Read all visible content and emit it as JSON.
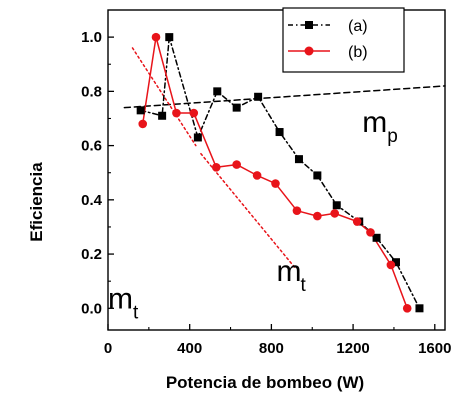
{
  "chart_data": {
    "type": "line",
    "xlabel": "Potencia de bombeo (W)",
    "ylabel": "Eficiencia",
    "xlim": [
      0,
      1650
    ],
    "ylim": [
      -0.08,
      1.1
    ],
    "xticks": [
      0,
      400,
      800,
      1200,
      1600
    ],
    "yticks": [
      0.0,
      0.2,
      0.4,
      0.6,
      0.8,
      1.0
    ],
    "xtick_labels": [
      "0",
      "400",
      "800",
      "1200",
      "1600"
    ],
    "ytick_labels": [
      "0.0",
      "0.2",
      "0.4",
      "0.6",
      "0.8",
      "1.0"
    ],
    "legend_position": "top-right",
    "series": [
      {
        "name": "(a)",
        "color": "#000000",
        "marker": "square",
        "line_style": "dash-dot",
        "x": [
          160,
          265,
          300,
          440,
          535,
          630,
          735,
          840,
          935,
          1025,
          1120,
          1230,
          1315,
          1410,
          1525
        ],
        "y": [
          0.73,
          0.71,
          1.0,
          0.63,
          0.8,
          0.74,
          0.78,
          0.65,
          0.55,
          0.49,
          0.38,
          0.32,
          0.26,
          0.17,
          0.0
        ]
      },
      {
        "name": "(b)",
        "color": "#e8141a",
        "marker": "circle",
        "line_style": "solid",
        "x": [
          170,
          235,
          335,
          420,
          530,
          630,
          730,
          820,
          925,
          1025,
          1110,
          1220,
          1285,
          1385,
          1465
        ],
        "y": [
          0.68,
          1.0,
          0.72,
          0.72,
          0.52,
          0.53,
          0.49,
          0.46,
          0.36,
          0.34,
          0.35,
          0.32,
          0.28,
          0.16,
          0.0
        ]
      }
    ],
    "annotations": [
      {
        "label": "m",
        "subscript": "p",
        "color": "#000000",
        "line_style": "dashed",
        "line_x": [
          80,
          1650
        ],
        "line_y": [
          0.74,
          0.82
        ],
        "label_anchor": [
          1245,
          0.65
        ]
      },
      {
        "label": "m",
        "subscript": "t",
        "color": "#e8141a",
        "line_style": "dotted",
        "line_x": [
          120,
          430
        ],
        "line_y": [
          0.96,
          0.6
        ],
        "label_anchor": [
          0,
          0
        ]
      },
      {
        "label": "",
        "subscript": "",
        "color": "#e8141a",
        "line_style": "dotted",
        "line_x": [
          455,
          915
        ],
        "line_y": [
          0.57,
          0.15
        ],
        "label_anchor": [
          825,
          0.1
        ]
      }
    ]
  }
}
